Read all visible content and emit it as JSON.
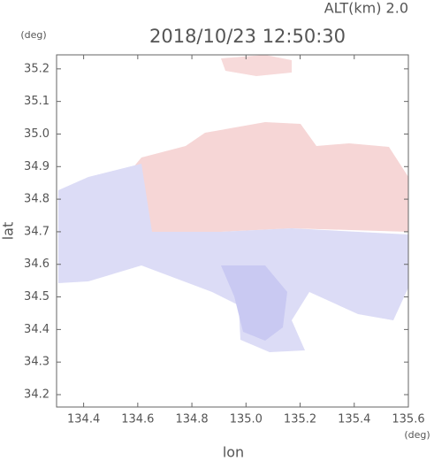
{
  "chart_data": {
    "type": "map",
    "title": "2018/10/23 12:50:30",
    "annotation": "ALT(km) 2.0",
    "xlabel": "lon",
    "ylabel": "lat",
    "x_unit": "(deg)",
    "y_unit": "(deg)",
    "xlim": [
      134.3,
      135.6
    ],
    "ylim": [
      34.162,
      35.243
    ],
    "xticks": [
      134.4,
      134.6,
      134.8,
      {
        "value": 135,
        "label": "135.0"
      },
      135.2,
      135.4,
      135.6
    ],
    "yticks": [
      34.2,
      34.3,
      34.4,
      34.5,
      34.6,
      34.7,
      34.8,
      34.9,
      {
        "value": 35,
        "label": "35.0"
      },
      35.1,
      35.2
    ]
  }
}
